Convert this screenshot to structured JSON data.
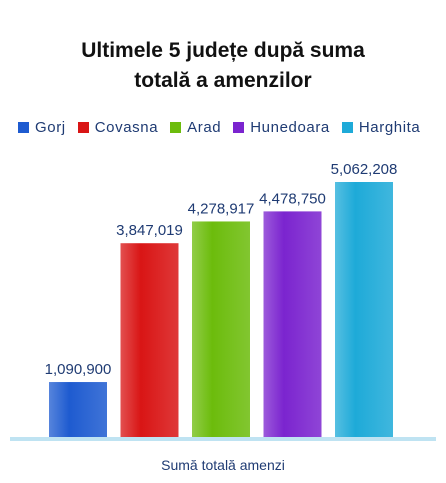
{
  "chart_data": {
    "type": "bar",
    "title_lines": [
      "Ultimele 5 județe după suma",
      "totală a amenzilor"
    ],
    "xlabel": "Sumă totală amenzi",
    "ylabel": "",
    "ylim": [
      0,
      5500000
    ],
    "grid": false,
    "legend_position": "top",
    "categories": [
      "Sumă totală amenzi"
    ],
    "series": [
      {
        "name": "Gorj",
        "values": [
          1090900
        ],
        "label": "1,090,900",
        "color": "#1e5bd0"
      },
      {
        "name": "Covasna",
        "values": [
          3847019
        ],
        "label": "3,847,019",
        "color": "#d91515"
      },
      {
        "name": "Arad",
        "values": [
          4278917
        ],
        "label": "4,278,917",
        "color": "#6cbc0c"
      },
      {
        "name": "Hunedoara",
        "values": [
          4478750
        ],
        "label": "4,478,750",
        "color": "#7b24cf"
      },
      {
        "name": "Harghita",
        "values": [
          5062208
        ],
        "label": "5,062,208",
        "color": "#1eaad8"
      }
    ]
  },
  "colors": {
    "baseline": "#bfe3f2",
    "label_text": "#1f3b73"
  }
}
